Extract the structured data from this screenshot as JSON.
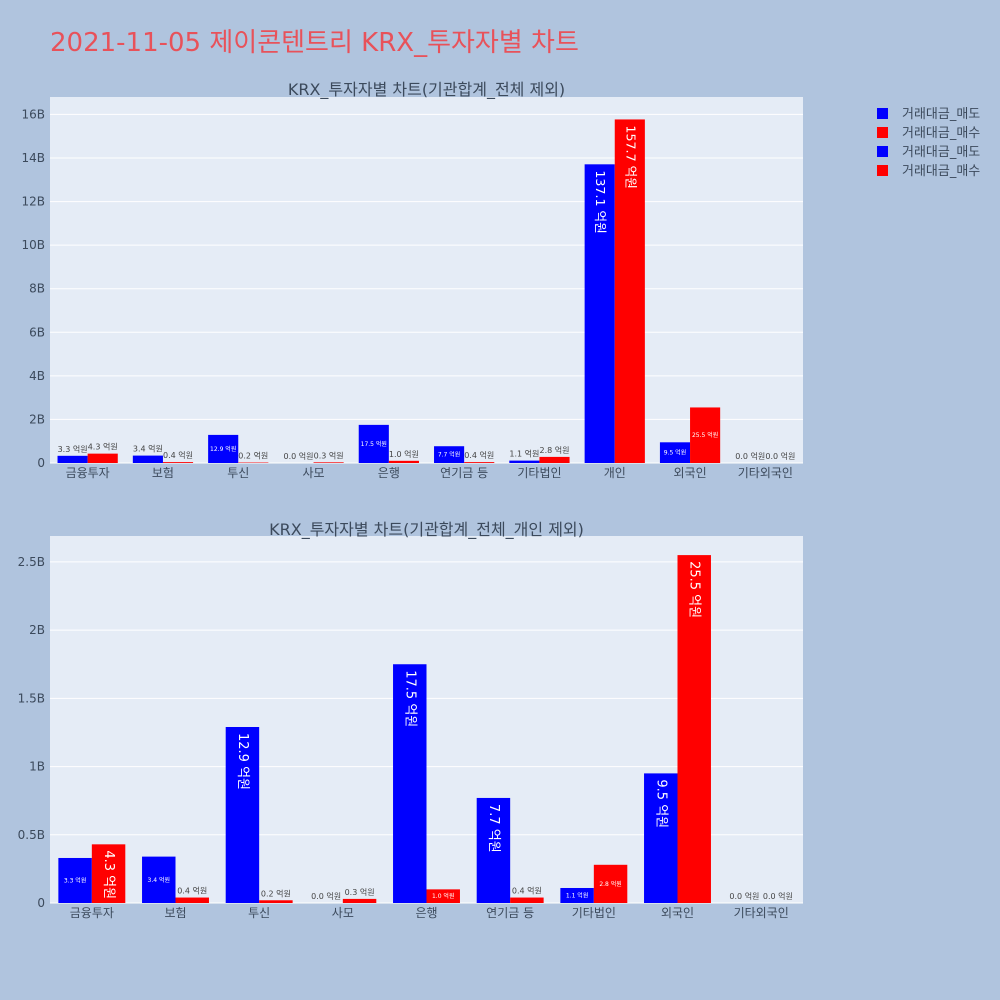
{
  "page_title": "2021-11-05 제이콘텐트리 KRX_투자자별 차트",
  "colors": {
    "sell": "#0000ff",
    "buy": "#ff0000",
    "plot_bg": "#e5ecf6",
    "page_bg": "#b0c4de",
    "title": "#e8525a"
  },
  "legend": [
    "거래대금_매도",
    "거래대금_매수",
    "거래대금_매도",
    "거래대금_매수"
  ],
  "chart_data": [
    {
      "type": "bar",
      "title": "KRX_투자자별 차트(기관합계_전체 제외)",
      "categories": [
        "금융투자",
        "보험",
        "투신",
        "사모",
        "은행",
        "연기금 등",
        "기타법인",
        "개인",
        "외국인",
        "기타외국인"
      ],
      "ylim": [
        0,
        16.8
      ],
      "yticks": [
        0,
        2,
        4,
        6,
        8,
        10,
        12,
        14,
        16
      ],
      "ytick_labels": [
        "0",
        "2B",
        "4B",
        "6B",
        "8B",
        "10B",
        "12B",
        "14B",
        "16B"
      ],
      "series": [
        {
          "name": "거래대금_매도",
          "values": [
            0.33,
            0.34,
            1.29,
            0.0,
            1.75,
            0.77,
            0.11,
            13.71,
            0.95,
            0.0
          ],
          "labels": [
            "3.3 억원",
            "3.4 억원",
            "12.9 억원",
            "0.0 억원",
            "17.5 억원",
            "7.7 억원",
            "1.1 억원",
            "137.1 억원",
            "9.5 억원",
            "0.0 억원"
          ]
        },
        {
          "name": "거래대금_매수",
          "values": [
            0.43,
            0.04,
            0.02,
            0.03,
            0.1,
            0.04,
            0.28,
            15.77,
            2.55,
            0.0
          ],
          "labels": [
            "4.3 억원",
            "0.4 억원",
            "0.2 억원",
            "0.3 억원",
            "1.0 억원",
            "0.4 억원",
            "2.8 억원",
            "157.7 억원",
            "25.5 억원",
            "0.0 억원"
          ]
        }
      ]
    },
    {
      "type": "bar",
      "title": "KRX_투자자별 차트(기관합계_전체_개인 제외)",
      "categories": [
        "금융투자",
        "보험",
        "투신",
        "사모",
        "은행",
        "연기금 등",
        "기타법인",
        "외국인",
        "기타외국인"
      ],
      "ylim": [
        0,
        2.69
      ],
      "yticks": [
        0,
        0.5,
        1,
        1.5,
        2,
        2.5
      ],
      "ytick_labels": [
        "0",
        "0.5B",
        "1B",
        "1.5B",
        "2B",
        "2.5B"
      ],
      "series": [
        {
          "name": "거래대금_매도",
          "values": [
            0.33,
            0.34,
            1.29,
            0.0,
            1.75,
            0.77,
            0.11,
            0.95,
            0.0
          ],
          "labels": [
            "3.3 억원",
            "3.4 억원",
            "12.9 억원",
            "0.0 억원",
            "17.5 억원",
            "7.7 억원",
            "1.1 억원",
            "9.5 억원",
            "0.0 억원"
          ]
        },
        {
          "name": "거래대금_매수",
          "values": [
            0.43,
            0.04,
            0.02,
            0.03,
            0.1,
            0.04,
            0.28,
            2.55,
            0.0
          ],
          "labels": [
            "4.3 억원",
            "0.4 억원",
            "0.2 억원",
            "0.3 억원",
            "1.0 억원",
            "0.4 억원",
            "2.8 억원",
            "25.5 억원",
            "0.0 억원"
          ]
        }
      ]
    }
  ]
}
